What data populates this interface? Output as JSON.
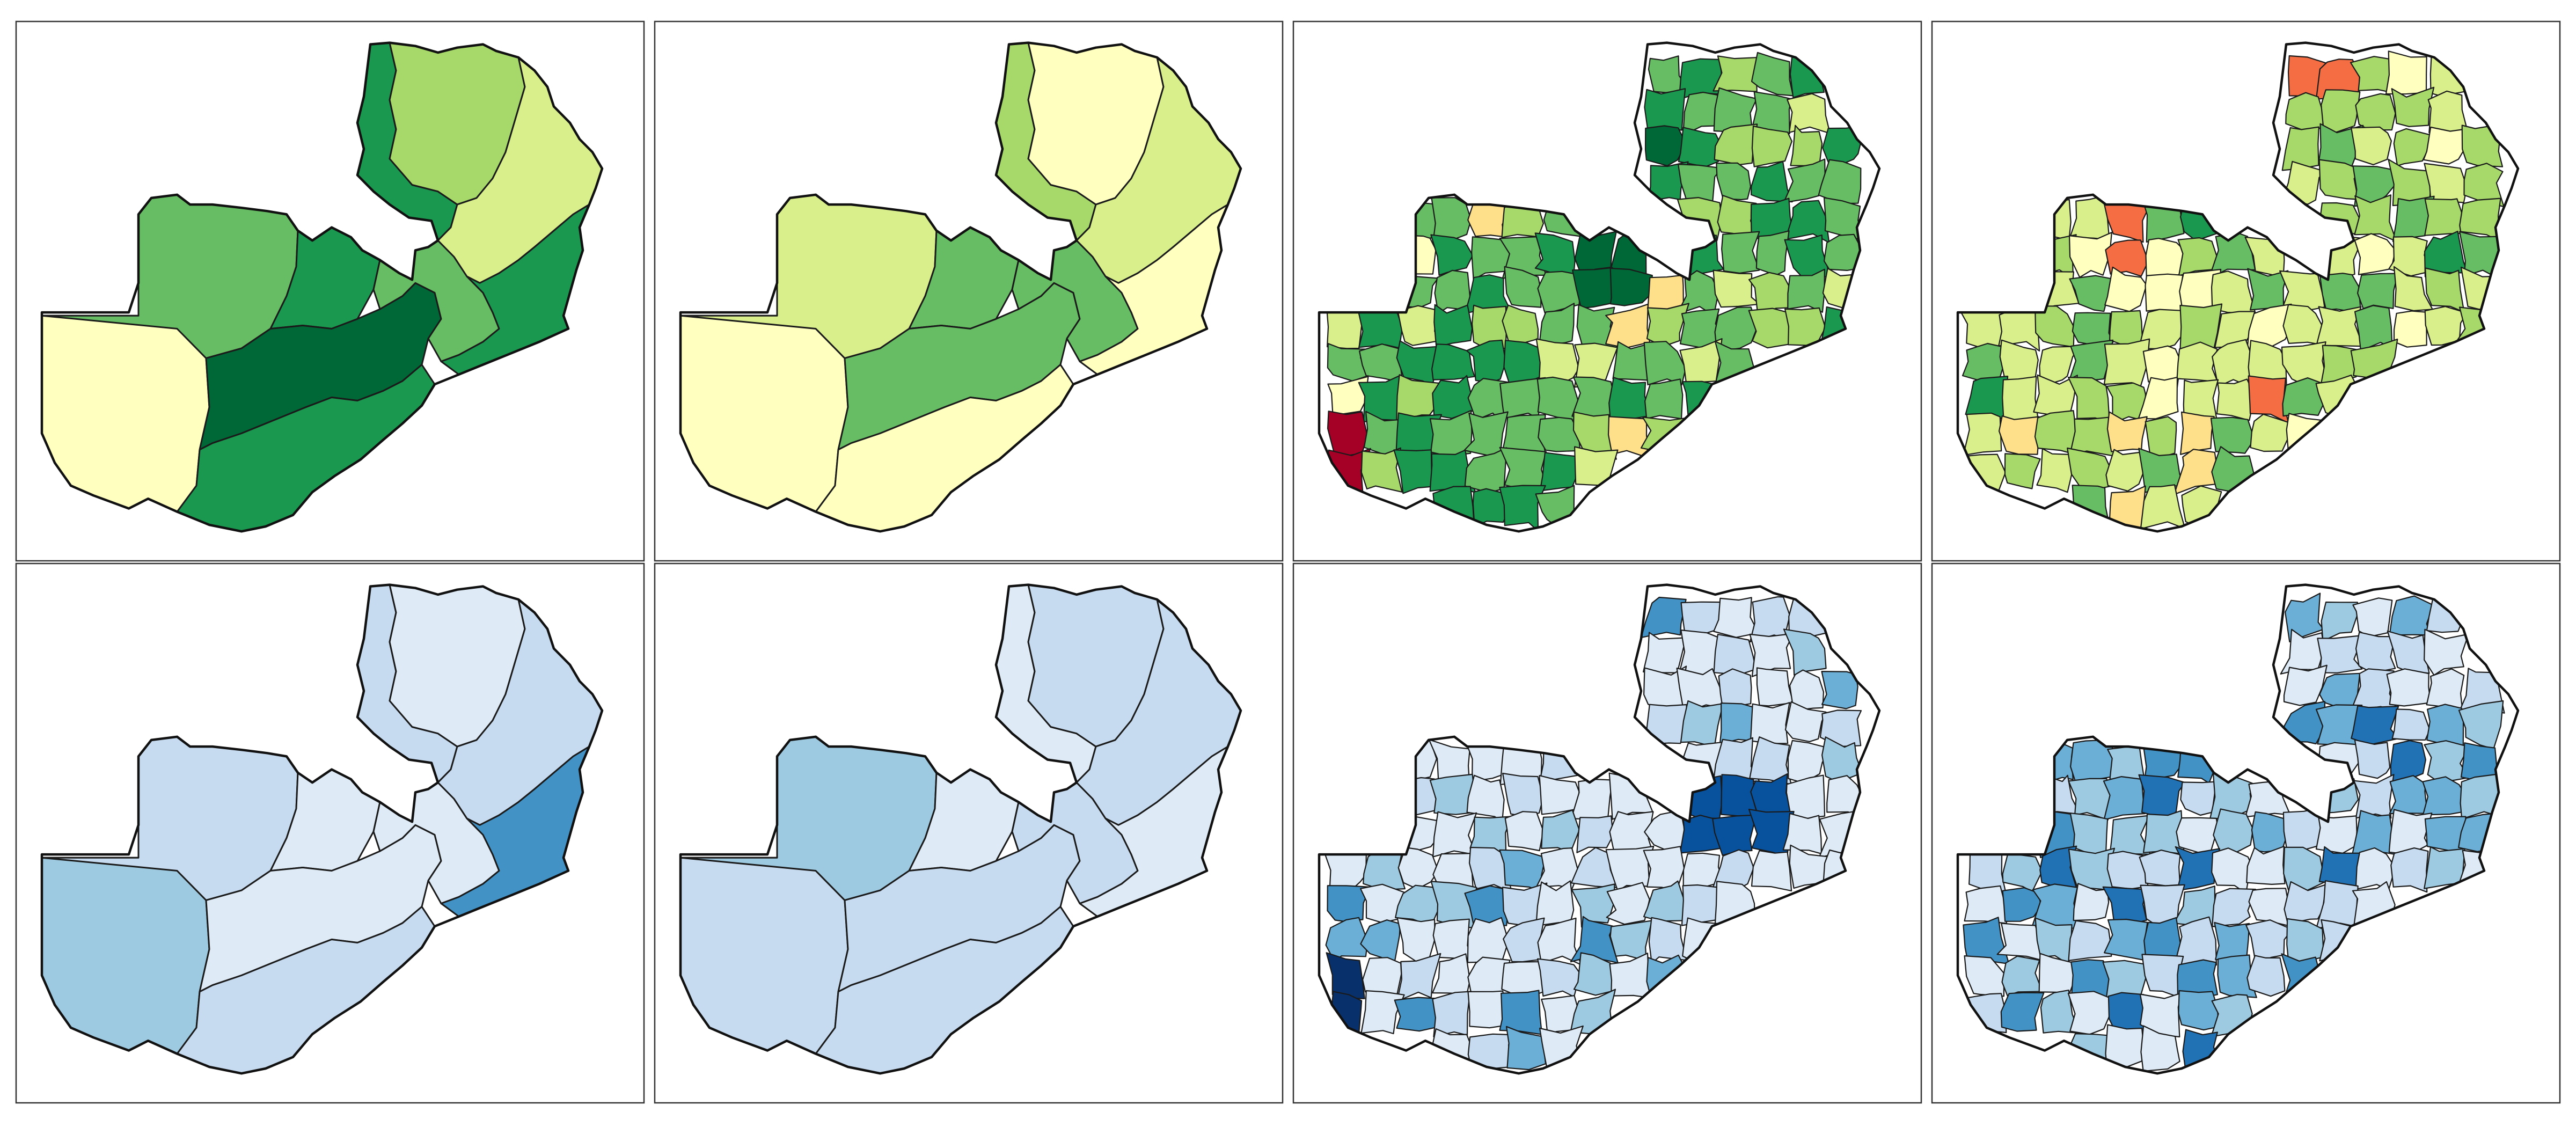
{
  "figure": {
    "title": "",
    "rows": [
      {
        "palette_name": "RdYlGn",
        "palette": [
          "#a50026",
          "#f46d43",
          "#fee08b",
          "#ffffbf",
          "#d9ef8b",
          "#a6d96a",
          "#66bd63",
          "#1a9850",
          "#006837"
        ]
      },
      {
        "palette_name": "Blues",
        "palette": [
          "#f7fbff",
          "#deebf7",
          "#c6dbef",
          "#9ecae1",
          "#6baed6",
          "#4292c6",
          "#2171b5",
          "#08519c",
          "#08306b"
        ]
      }
    ],
    "panels": [
      {
        "row": 0,
        "col": 0,
        "level": "province",
        "classes": [
          3,
          6,
          7,
          8,
          7,
          6,
          7,
          5,
          4,
          7
        ]
      },
      {
        "row": 0,
        "col": 1,
        "level": "province",
        "classes": [
          3,
          4,
          6,
          6,
          3,
          6,
          5,
          3,
          4,
          3
        ]
      },
      {
        "row": 0,
        "col": 2,
        "level": "district",
        "max_class": 8,
        "min_class": 0,
        "dominant": "green"
      },
      {
        "row": 0,
        "col": 3,
        "level": "district",
        "max_class": 7,
        "min_class": 1,
        "dominant": "light-green"
      },
      {
        "row": 1,
        "col": 0,
        "level": "province",
        "classes": [
          3,
          2,
          1,
          1,
          2,
          1,
          2,
          1,
          2,
          5
        ]
      },
      {
        "row": 1,
        "col": 1,
        "level": "province",
        "classes": [
          2,
          3,
          1,
          2,
          2,
          2,
          1,
          2,
          2,
          1
        ]
      },
      {
        "row": 1,
        "col": 2,
        "level": "district",
        "max_class": 8,
        "min_class": 0,
        "dominant": "pale-blue"
      },
      {
        "row": 1,
        "col": 3,
        "level": "district",
        "max_class": 6,
        "min_class": 1,
        "dominant": "mid-blue"
      }
    ]
  }
}
